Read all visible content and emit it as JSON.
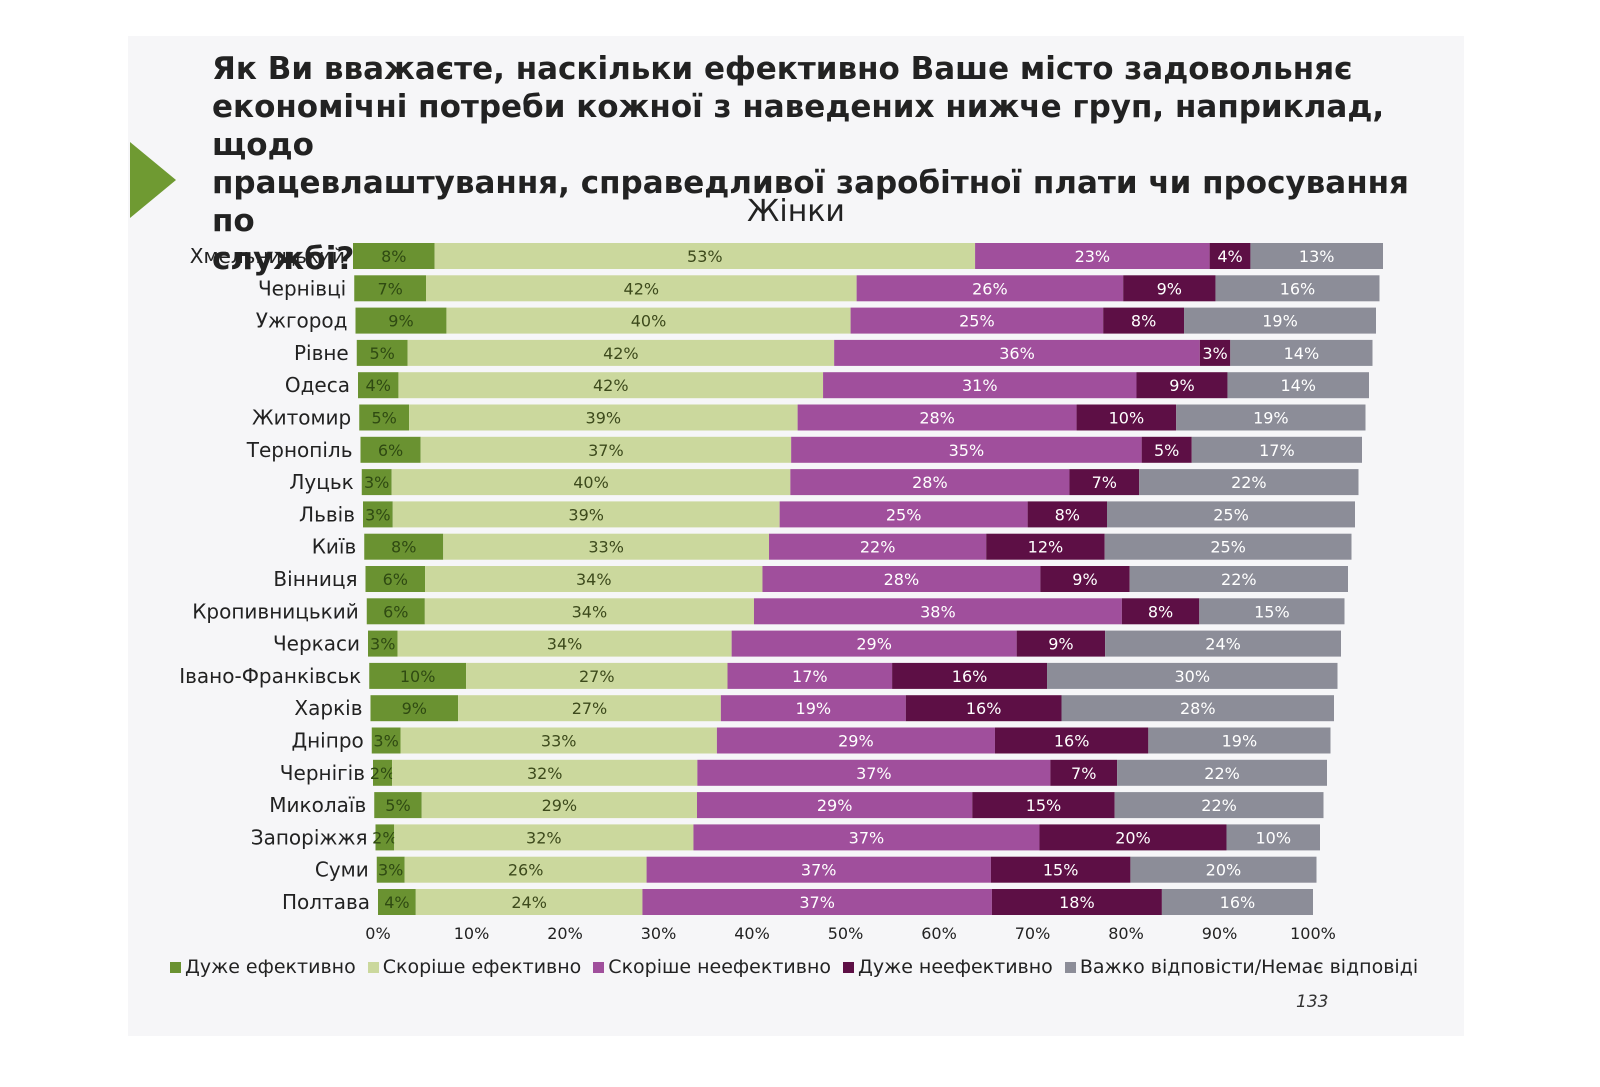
{
  "page": {
    "question": "Як Ви вважаєте, наскільки ефективно Ваше місто задовольняє\nекономічні потреби кожної з наведених нижче груп, наприклад, щодо\nпрацевлаштування, справедливої заробітної плати чи просування по\nслужбі?",
    "page_number": "133"
  },
  "chart_data": {
    "type": "bar",
    "orientation": "horizontal",
    "stacked": "100%",
    "title": "Жінки",
    "xlim": [
      0,
      100
    ],
    "x_ticks": [
      "0%",
      "10%",
      "20%",
      "30%",
      "40%",
      "50%",
      "60%",
      "70%",
      "80%",
      "90%",
      "100%"
    ],
    "legend_position": "bottom",
    "grid": false,
    "categories": [
      "Хмельницький",
      "Чернівці",
      "Ужгород",
      "Рівне",
      "Одеса",
      "Житомир",
      "Тернопіль",
      "Луцьк",
      "Львів",
      "Київ",
      "Вінниця",
      "Кропивницький",
      "Черкаси",
      "Івано-Франківськ",
      "Харків",
      "Дніпро",
      "Чернігів",
      "Миколаїв",
      "Запоріжжя",
      "Суми",
      "Полтава"
    ],
    "series": [
      {
        "name": "Дуже ефективно",
        "color": "#6a9231",
        "text_color": "#2f4a12",
        "values": [
          8,
          7,
          9,
          5,
          4,
          5,
          6,
          3,
          3,
          8,
          6,
          6,
          3,
          10,
          9,
          3,
          2,
          5,
          2,
          3,
          4
        ]
      },
      {
        "name": "Скоріше ефективно",
        "color": "#cbd89d",
        "text_color": "#3d4a1c",
        "values": [
          53,
          42,
          40,
          42,
          42,
          39,
          37,
          40,
          39,
          33,
          34,
          34,
          34,
          27,
          27,
          33,
          32,
          29,
          32,
          26,
          24
        ]
      },
      {
        "name": "Скоріше неефективно",
        "color": "#a04f9c",
        "text_color": "#ffffff",
        "values": [
          23,
          26,
          25,
          36,
          31,
          28,
          35,
          28,
          25,
          22,
          28,
          38,
          29,
          17,
          19,
          29,
          37,
          29,
          37,
          37,
          37
        ]
      },
      {
        "name": "Дуже неефективно",
        "color": "#5d0f45",
        "text_color": "#ffffff",
        "values": [
          4,
          9,
          8,
          3,
          9,
          10,
          5,
          7,
          8,
          12,
          9,
          8,
          9,
          16,
          16,
          16,
          7,
          15,
          20,
          15,
          18
        ]
      },
      {
        "name": "Важко відповісти/Немає відповіді",
        "color": "#8c8d98",
        "text_color": "#ffffff",
        "values": [
          13,
          16,
          19,
          14,
          14,
          19,
          17,
          22,
          25,
          25,
          22,
          15,
          24,
          30,
          28,
          19,
          22,
          22,
          10,
          20,
          16
        ]
      }
    ]
  }
}
